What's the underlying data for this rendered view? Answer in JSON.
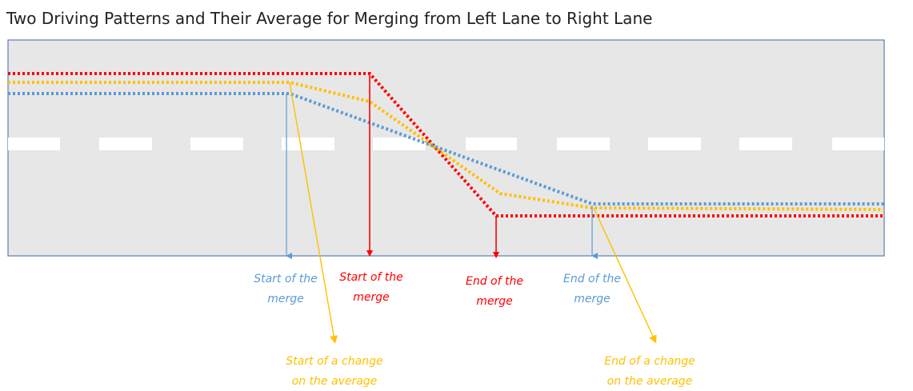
{
  "title": "Two Driving Patterns and Their Average for Merging from Left Lane to Right Lane",
  "labels": [
    {
      "lines": [
        "Start of the",
        "merge"
      ]
    },
    {
      "lines": [
        "Start of the",
        "merge"
      ]
    },
    {
      "lines": [
        "End of the",
        "merge"
      ]
    },
    {
      "lines": [
        "End of the",
        "merge"
      ]
    },
    {
      "lines": [
        "Start of a change",
        "on the average"
      ]
    },
    {
      "lines": [
        "End of a change",
        "on the average"
      ]
    }
  ]
}
